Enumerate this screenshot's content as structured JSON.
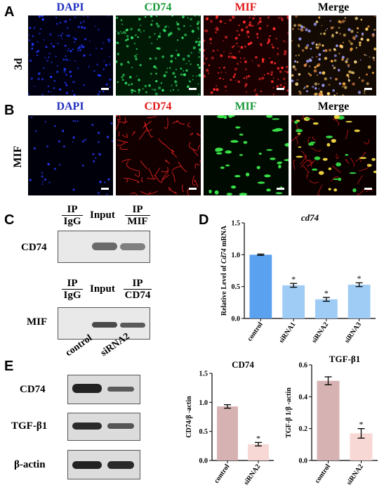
{
  "panels": {
    "a": {
      "letter": "A",
      "row_label": "3d",
      "columns": [
        "DAPI",
        "CD74",
        "MIF",
        "Merge"
      ],
      "column_colors": [
        "#1f2fbf",
        "#1a9a3a",
        "#e01818",
        "#000000"
      ]
    },
    "b": {
      "letter": "B",
      "row_label": "MIF",
      "columns": [
        "DAPI",
        "CD74",
        "MIF",
        "Merge"
      ],
      "column_colors": [
        "#1f2fbf",
        "#e01818",
        "#1a9a3a",
        "#000000"
      ]
    },
    "c": {
      "letter": "C",
      "ip_igg_top": "IP",
      "ip_igg_bottom": "IgG",
      "input": "Input",
      "ip_mif_top": "IP",
      "ip_mif_bottom": "MIF",
      "blot1_label": "CD74",
      "ip_igg2_top": "IP",
      "ip_igg2_bottom": "IgG",
      "input2": "Input",
      "ip_cd74_top": "IP",
      "ip_cd74_bottom": "CD74",
      "blot2_label": "MIF"
    },
    "d": {
      "letter": "D"
    },
    "e": {
      "letter": "E",
      "lane_control": "control",
      "lane_sirna2": "siRNA2",
      "rows": [
        "CD74",
        "TGF-β1",
        "β-actin"
      ]
    }
  },
  "chart_data": [
    {
      "type": "bar",
      "title": "cd74",
      "ylabel_prefix": "Relative Level of ",
      "ylabel_italic": "Cd74",
      "ylabel_suffix": " mRNA",
      "categories": [
        "control",
        "siRNA1",
        "siRNA2",
        "siRNA3"
      ],
      "values": [
        1.0,
        0.52,
        0.3,
        0.53
      ],
      "errors": [
        0.01,
        0.03,
        0.03,
        0.03
      ],
      "significance": [
        "",
        "*",
        "*",
        "*"
      ],
      "ylim": [
        0,
        1.5
      ],
      "yticks": [
        "0.0",
        "0.5",
        "1.0",
        "1.5"
      ],
      "colors": [
        "#5aa2ef",
        "#9fccf5",
        "#9fccf5",
        "#9fccf5"
      ]
    },
    {
      "type": "bar",
      "title": "CD74",
      "ylabel": "CD74/β -actin",
      "categories": [
        "control",
        "siRNA2"
      ],
      "values": [
        0.93,
        0.28
      ],
      "errors": [
        0.03,
        0.03
      ],
      "significance": [
        "",
        "*"
      ],
      "ylim": [
        0,
        1.5
      ],
      "yticks": [
        "0.0",
        "0.5",
        "1.0",
        "1.5"
      ],
      "colors": [
        "#d7b2b2",
        "#f7d8d5"
      ]
    },
    {
      "type": "bar",
      "title": "TGF-β1",
      "ylabel": "TGF-β 1/β -actin",
      "categories": [
        "control",
        "siRNA2"
      ],
      "values": [
        0.5,
        0.17
      ],
      "errors": [
        0.025,
        0.03
      ],
      "significance": [
        "",
        "*"
      ],
      "ylim": [
        0,
        0.6
      ],
      "yticks": [
        "0.0",
        "0.2",
        "0.4",
        "0.6"
      ],
      "colors": [
        "#d7b2b2",
        "#f7d8d5"
      ]
    }
  ]
}
